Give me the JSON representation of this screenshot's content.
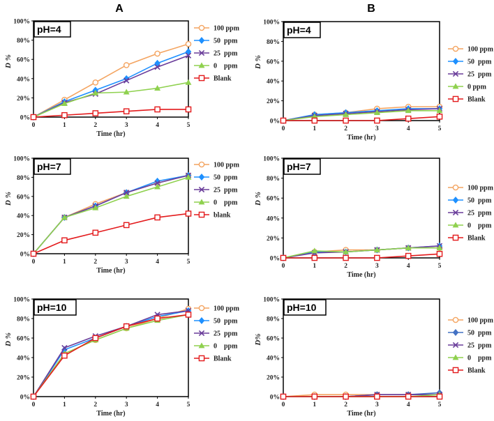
{
  "figure": {
    "col_titles": [
      "A",
      "B"
    ]
  },
  "chart_data": [
    {
      "type": "line",
      "panel": "A",
      "title": "pH=4",
      "xlabel": "Time (hr)",
      "ylabel": "D %",
      "x": [
        0,
        1,
        2,
        3,
        4,
        5
      ],
      "ylim": [
        0,
        100
      ],
      "yticks": [
        "0%",
        "20%",
        "40%",
        "60%",
        "80%",
        "100%"
      ],
      "series": [
        {
          "name": "100 ppm",
          "color": "#F4A460",
          "marker": "circle",
          "values": [
            0,
            18,
            36,
            54,
            66,
            76
          ]
        },
        {
          "name": "50  ppm",
          "color": "#1E90FF",
          "marker": "diamond",
          "values": [
            0,
            16,
            28,
            40,
            56,
            68
          ]
        },
        {
          "name": "25  ppm",
          "color": "#6A3D9A",
          "marker": "x",
          "values": [
            0,
            15,
            24,
            38,
            52,
            64
          ]
        },
        {
          "name": "0    ppm",
          "color": "#8FD14F",
          "marker": "triangle",
          "values": [
            0,
            14,
            25,
            26,
            30,
            36
          ]
        },
        {
          "name": "Blank",
          "color": "#E31A1C",
          "marker": "square",
          "values": [
            0,
            2,
            4,
            6,
            8,
            8
          ]
        }
      ]
    },
    {
      "type": "line",
      "panel": "B",
      "title": "pH=4",
      "xlabel": "Time (hr)",
      "ylabel": "D %",
      "x": [
        0,
        1,
        2,
        3,
        4,
        5
      ],
      "ylim": [
        0,
        100
      ],
      "yticks": [
        "0%",
        "20%",
        "40%",
        "60%",
        "80%",
        "100%"
      ],
      "series": [
        {
          "name": "100 ppm",
          "color": "#F4A460",
          "marker": "circle",
          "values": [
            0,
            6,
            8,
            12,
            14,
            14
          ]
        },
        {
          "name": "50  ppm",
          "color": "#1E90FF",
          "marker": "diamond",
          "values": [
            0,
            6,
            8,
            10,
            12,
            12
          ]
        },
        {
          "name": "25  ppm",
          "color": "#6A3D9A",
          "marker": "x",
          "values": [
            0,
            5,
            7,
            9,
            11,
            12
          ]
        },
        {
          "name": "0 ppm",
          "color": "#8FD14F",
          "marker": "triangle",
          "values": [
            0,
            4,
            6,
            8,
            10,
            10
          ]
        },
        {
          "name": "Blank",
          "color": "#E31A1C",
          "marker": "square",
          "values": [
            0,
            0,
            0,
            0,
            2,
            4
          ]
        }
      ]
    },
    {
      "type": "line",
      "panel": "A",
      "title": "pH=7",
      "xlabel": "Time (hr)",
      "ylabel": "D %",
      "x": [
        0,
        1,
        2,
        3,
        4,
        5
      ],
      "ylim": [
        0,
        100
      ],
      "yticks": [
        "0%",
        "20%",
        "40%",
        "60%",
        "80%",
        "100%"
      ],
      "series": [
        {
          "name": "100 ppm",
          "color": "#F4A460",
          "marker": "circle",
          "values": [
            0,
            38,
            52,
            64,
            74,
            82
          ]
        },
        {
          "name": "50  ppm",
          "color": "#1E90FF",
          "marker": "diamond",
          "values": [
            0,
            38,
            50,
            64,
            76,
            82
          ]
        },
        {
          "name": "25  ppm",
          "color": "#6A3D9A",
          "marker": "x",
          "values": [
            0,
            38,
            50,
            64,
            74,
            82
          ]
        },
        {
          "name": "0    ppm",
          "color": "#8FD14F",
          "marker": "triangle",
          "values": [
            0,
            38,
            48,
            60,
            70,
            80
          ]
        },
        {
          "name": "blank",
          "color": "#E31A1C",
          "marker": "square",
          "values": [
            0,
            14,
            22,
            30,
            38,
            42
          ]
        }
      ]
    },
    {
      "type": "line",
      "panel": "B",
      "title": "pH=7",
      "xlabel": "Time (hr)",
      "ylabel": "D %",
      "x": [
        0,
        1,
        2,
        3,
        4,
        5
      ],
      "ylim": [
        0,
        100
      ],
      "yticks": [
        "0%",
        "20%",
        "40%",
        "60%",
        "80%",
        "100%"
      ],
      "series": [
        {
          "name": "100 ppm",
          "color": "#F4A460",
          "marker": "circle",
          "values": [
            0,
            6,
            8,
            8,
            10,
            10
          ]
        },
        {
          "name": "50  ppm",
          "color": "#1E90FF",
          "marker": "diamond",
          "values": [
            0,
            6,
            6,
            8,
            10,
            12
          ]
        },
        {
          "name": "25  ppm",
          "color": "#6A3D9A",
          "marker": "x",
          "values": [
            0,
            5,
            6,
            8,
            10,
            12
          ]
        },
        {
          "name": "0    ppm",
          "color": "#8FD14F",
          "marker": "triangle",
          "values": [
            0,
            7,
            6,
            8,
            10,
            10
          ]
        },
        {
          "name": "Blank",
          "color": "#E31A1C",
          "marker": "square",
          "values": [
            0,
            0,
            0,
            0,
            2,
            4
          ]
        }
      ]
    },
    {
      "type": "line",
      "panel": "A",
      "title": "pH=10",
      "xlabel": "Time (hr)",
      "ylabel": "D %",
      "x": [
        0,
        1,
        2,
        3,
        4,
        5
      ],
      "ylim": [
        0,
        100
      ],
      "yticks": [
        "0%",
        "20%",
        "40%",
        "60%",
        "80%",
        "100%"
      ],
      "series": [
        {
          "name": "100 ppm",
          "color": "#F4A460",
          "marker": "circle",
          "values": [
            0,
            44,
            58,
            70,
            80,
            90
          ]
        },
        {
          "name": "50  ppm",
          "color": "#1E90FF",
          "marker": "diamond",
          "values": [
            0,
            48,
            60,
            72,
            82,
            88
          ]
        },
        {
          "name": "25  ppm",
          "color": "#6A3D9A",
          "marker": "x",
          "values": [
            0,
            50,
            62,
            72,
            84,
            88
          ]
        },
        {
          "name": "0    ppm",
          "color": "#8FD14F",
          "marker": "triangle",
          "values": [
            0,
            44,
            58,
            70,
            78,
            84
          ]
        },
        {
          "name": "Blank",
          "color": "#E31A1C",
          "marker": "square",
          "values": [
            0,
            42,
            60,
            72,
            80,
            84
          ]
        }
      ]
    },
    {
      "type": "line",
      "panel": "B",
      "title": "pH=10",
      "xlabel": "Time (hr)",
      "ylabel": "D%",
      "x": [
        0,
        1,
        2,
        3,
        4,
        5
      ],
      "ylim": [
        0,
        100
      ],
      "yticks": [
        "0%",
        "20%",
        "40%",
        "60%",
        "80%",
        "100%"
      ],
      "series": [
        {
          "name": "100 ppm",
          "color": "#F4A460",
          "marker": "circle",
          "values": [
            0,
            2,
            2,
            2,
            2,
            2
          ]
        },
        {
          "name": "50  ppm",
          "color": "#4472C4",
          "marker": "diamond",
          "values": [
            0,
            0,
            0,
            2,
            2,
            4
          ]
        },
        {
          "name": "25  ppm",
          "color": "#6A3D9A",
          "marker": "x",
          "values": [
            0,
            0,
            0,
            2,
            2,
            2
          ]
        },
        {
          "name": "0    ppm",
          "color": "#8FD14F",
          "marker": "triangle",
          "values": [
            0,
            0,
            0,
            0,
            0,
            2
          ]
        },
        {
          "name": "Blank",
          "color": "#E31A1C",
          "marker": "square",
          "values": [
            0,
            0,
            0,
            0,
            0,
            0
          ]
        }
      ]
    }
  ]
}
